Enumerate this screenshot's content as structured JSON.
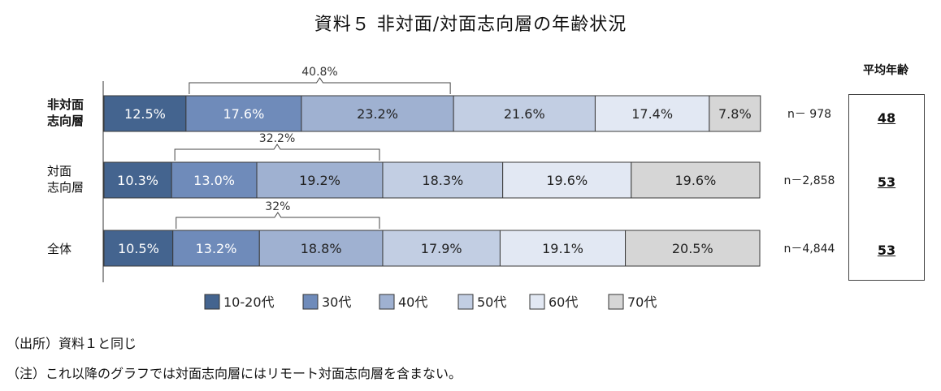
{
  "title": "資料５ 非対面/対面志向層の年齢状況",
  "avg_header": "平均年齢",
  "notes": [
    "（出所）資料１と同じ",
    "（注）これ以降のグラフでは対面志向層にはリモート対面志向層を含まない。"
  ],
  "chart_data": {
    "type": "bar",
    "orientation": "horizontal",
    "stacked": "percent",
    "categories": [
      "非対面\n志向層",
      "対面\n志向層",
      "全体"
    ],
    "category_bold": [
      true,
      false,
      false
    ],
    "series": [
      {
        "name": "10-20代",
        "color": "#44648f",
        "values": [
          12.5,
          10.3,
          10.5
        ],
        "labels": [
          "12.5%",
          "10.3%",
          "10.5%"
        ]
      },
      {
        "name": "30代",
        "color": "#6f8bba",
        "values": [
          17.6,
          13.0,
          13.2
        ],
        "labels": [
          "17.6%",
          "13.0%",
          "13.2%"
        ]
      },
      {
        "name": "40代",
        "color": "#9fb1d1",
        "values": [
          23.2,
          19.2,
          18.8
        ],
        "labels": [
          "23.2%",
          "19.2%",
          "18.8%"
        ]
      },
      {
        "name": "50代",
        "color": "#c2cee3",
        "values": [
          21.6,
          18.3,
          17.9
        ],
        "labels": [
          "21.6%",
          "18.3%",
          "17.9%"
        ]
      },
      {
        "name": "60代",
        "color": "#e2e8f3",
        "values": [
          17.4,
          19.6,
          19.1
        ],
        "labels": [
          "17.4%",
          "19.6%",
          "19.1%"
        ]
      },
      {
        "name": "70代",
        "color": "#d6d6d6",
        "values": [
          7.8,
          19.6,
          20.5
        ],
        "labels": [
          "7.8%",
          "19.6%",
          "20.5%"
        ]
      }
    ],
    "n_labels": [
      "n－ 978",
      "n－2,858",
      "n－4,844"
    ],
    "brackets": [
      "40.8%",
      "32.2%",
      "32%"
    ],
    "bracket_span": [
      "30代",
      "40代"
    ],
    "averages": [
      "48",
      "53",
      "53"
    ],
    "xlim": [
      0,
      100
    ],
    "legend_position": "bottom"
  }
}
